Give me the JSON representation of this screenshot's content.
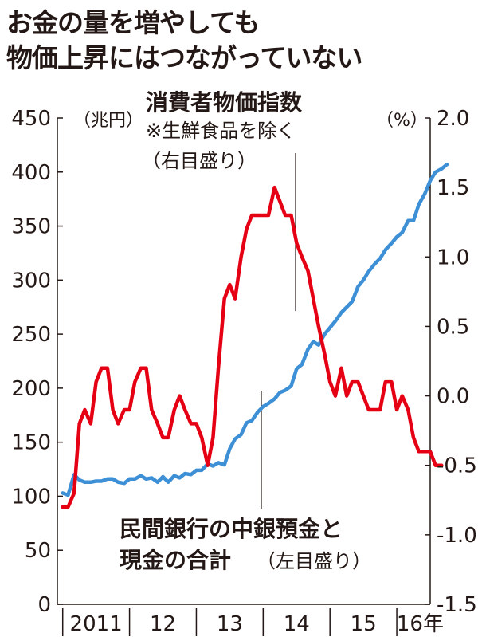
{
  "title": {
    "line1": "お金の量を増やしても",
    "line2": "物価上昇にはつながっていない"
  },
  "chart_data": {
    "type": "line",
    "title": "お金の量を増やしても物価上昇にはつながっていない",
    "left_axis": {
      "unit": "（兆円）",
      "range": [
        0,
        450
      ],
      "ticks": [
        0,
        50,
        100,
        150,
        200,
        250,
        300,
        350,
        400,
        450
      ]
    },
    "right_axis": {
      "unit": "（%）",
      "range": [
        -1.5,
        2.0
      ],
      "ticks": [
        -1.5,
        -1.0,
        -0.5,
        0.0,
        0.5,
        1.0,
        1.5,
        2.0
      ],
      "tick_labels": [
        "-1.5",
        "-1.0",
        "-0.5",
        "0.0",
        "0.5",
        "1.0",
        "1.5",
        "2.0"
      ]
    },
    "x_axis": {
      "range": [
        2010.92,
        2016.5
      ],
      "boundaries": [
        2011.0,
        2012.0,
        2013.0,
        2014.0,
        2015.0,
        2016.0
      ],
      "tick_labels": [
        {
          "label": "2011",
          "x": 2011.5
        },
        {
          "label": "12",
          "x": 2012.5
        },
        {
          "label": "13",
          "x": 2013.5
        },
        {
          "label": "14",
          "x": 2014.5
        },
        {
          "label": "15",
          "x": 2015.5
        },
        {
          "label": "16年",
          "x": 2016.35
        }
      ]
    },
    "series": [
      {
        "name": "民間銀行の中銀預金と現金の合計",
        "axis": "left",
        "color": "#3d8fd6",
        "annotation": {
          "line1": "民間銀行の中銀預金と",
          "line2": "現金の合計",
          "note": "（左目盛り）"
        },
        "points": [
          [
            2011.0,
            103
          ],
          [
            2011.08,
            101
          ],
          [
            2011.17,
            120
          ],
          [
            2011.25,
            115
          ],
          [
            2011.33,
            113
          ],
          [
            2011.42,
            113
          ],
          [
            2011.5,
            114
          ],
          [
            2011.58,
            114
          ],
          [
            2011.67,
            116
          ],
          [
            2011.75,
            116
          ],
          [
            2011.83,
            113
          ],
          [
            2011.92,
            112
          ],
          [
            2012.0,
            116
          ],
          [
            2012.08,
            116
          ],
          [
            2012.17,
            119
          ],
          [
            2012.25,
            116
          ],
          [
            2012.33,
            117
          ],
          [
            2012.42,
            113
          ],
          [
            2012.5,
            118
          ],
          [
            2012.58,
            113
          ],
          [
            2012.67,
            119
          ],
          [
            2012.75,
            117
          ],
          [
            2012.83,
            121
          ],
          [
            2012.92,
            120
          ],
          [
            2013.0,
            124
          ],
          [
            2013.08,
            124
          ],
          [
            2013.17,
            130
          ],
          [
            2013.25,
            128
          ],
          [
            2013.33,
            131
          ],
          [
            2013.42,
            129
          ],
          [
            2013.5,
            144
          ],
          [
            2013.58,
            153
          ],
          [
            2013.67,
            157
          ],
          [
            2013.75,
            168
          ],
          [
            2013.83,
            170
          ],
          [
            2013.92,
            178
          ],
          [
            2014.0,
            183
          ],
          [
            2014.08,
            186
          ],
          [
            2014.17,
            190
          ],
          [
            2014.25,
            196
          ],
          [
            2014.33,
            198
          ],
          [
            2014.42,
            202
          ],
          [
            2014.5,
            218
          ],
          [
            2014.58,
            222
          ],
          [
            2014.67,
            236
          ],
          [
            2014.75,
            243
          ],
          [
            2014.83,
            240
          ],
          [
            2014.92,
            250
          ],
          [
            2015.0,
            256
          ],
          [
            2015.08,
            262
          ],
          [
            2015.17,
            270
          ],
          [
            2015.25,
            275
          ],
          [
            2015.33,
            280
          ],
          [
            2015.42,
            294
          ],
          [
            2015.5,
            300
          ],
          [
            2015.58,
            308
          ],
          [
            2015.67,
            315
          ],
          [
            2015.75,
            320
          ],
          [
            2015.83,
            328
          ],
          [
            2015.92,
            334
          ],
          [
            2016.0,
            340
          ],
          [
            2016.08,
            344
          ],
          [
            2016.17,
            355
          ],
          [
            2016.25,
            355
          ],
          [
            2016.33,
            370
          ],
          [
            2016.42,
            380
          ],
          [
            2016.5,
            392
          ],
          [
            2016.58,
            400
          ],
          [
            2016.67,
            403
          ],
          [
            2016.75,
            407
          ]
        ]
      },
      {
        "name": "消費者物価指数",
        "axis": "right",
        "color": "#e50014",
        "annotation": {
          "line1": "消費者物価指数",
          "line2": "※生鮮食品を除く",
          "note": "（右目盛り）"
        },
        "points": [
          [
            2011.0,
            -0.8
          ],
          [
            2011.08,
            -0.8
          ],
          [
            2011.17,
            -0.7
          ],
          [
            2011.25,
            -0.2
          ],
          [
            2011.33,
            -0.1
          ],
          [
            2011.42,
            -0.2
          ],
          [
            2011.5,
            0.1
          ],
          [
            2011.58,
            0.2
          ],
          [
            2011.67,
            0.2
          ],
          [
            2011.75,
            -0.1
          ],
          [
            2011.83,
            -0.2
          ],
          [
            2011.92,
            -0.1
          ],
          [
            2012.0,
            -0.1
          ],
          [
            2012.08,
            0.1
          ],
          [
            2012.17,
            0.2
          ],
          [
            2012.25,
            0.2
          ],
          [
            2012.33,
            -0.1
          ],
          [
            2012.42,
            -0.2
          ],
          [
            2012.5,
            -0.3
          ],
          [
            2012.58,
            -0.3
          ],
          [
            2012.67,
            -0.1
          ],
          [
            2012.75,
            0.0
          ],
          [
            2012.83,
            -0.1
          ],
          [
            2012.92,
            -0.2
          ],
          [
            2013.0,
            -0.2
          ],
          [
            2013.08,
            -0.3
          ],
          [
            2013.17,
            -0.5
          ],
          [
            2013.25,
            -0.3
          ],
          [
            2013.33,
            0.2
          ],
          [
            2013.42,
            0.7
          ],
          [
            2013.5,
            0.8
          ],
          [
            2013.58,
            0.7
          ],
          [
            2013.67,
            1.0
          ],
          [
            2013.75,
            1.2
          ],
          [
            2013.83,
            1.3
          ],
          [
            2013.92,
            1.3
          ],
          [
            2014.0,
            1.3
          ],
          [
            2014.08,
            1.3
          ],
          [
            2014.17,
            1.5
          ],
          [
            2014.25,
            1.4
          ],
          [
            2014.33,
            1.3
          ],
          [
            2014.42,
            1.3
          ],
          [
            2014.5,
            1.1
          ],
          [
            2014.58,
            1.0
          ],
          [
            2014.67,
            0.9
          ],
          [
            2014.75,
            0.7
          ],
          [
            2014.83,
            0.5
          ],
          [
            2014.92,
            0.3
          ],
          [
            2015.0,
            0.1
          ],
          [
            2015.08,
            0.0
          ],
          [
            2015.17,
            0.2
          ],
          [
            2015.25,
            0.0
          ],
          [
            2015.33,
            0.1
          ],
          [
            2015.42,
            0.1
          ],
          [
            2015.5,
            0.0
          ],
          [
            2015.58,
            -0.1
          ],
          [
            2015.67,
            -0.1
          ],
          [
            2015.75,
            -0.1
          ],
          [
            2015.83,
            0.1
          ],
          [
            2015.92,
            0.1
          ],
          [
            2016.0,
            -0.1
          ],
          [
            2016.08,
            0.0
          ],
          [
            2016.17,
            -0.1
          ],
          [
            2016.25,
            -0.3
          ],
          [
            2016.33,
            -0.4
          ],
          [
            2016.42,
            -0.4
          ],
          [
            2016.5,
            -0.4
          ],
          [
            2016.58,
            -0.5
          ],
          [
            2016.67,
            -0.5
          ]
        ]
      }
    ]
  }
}
